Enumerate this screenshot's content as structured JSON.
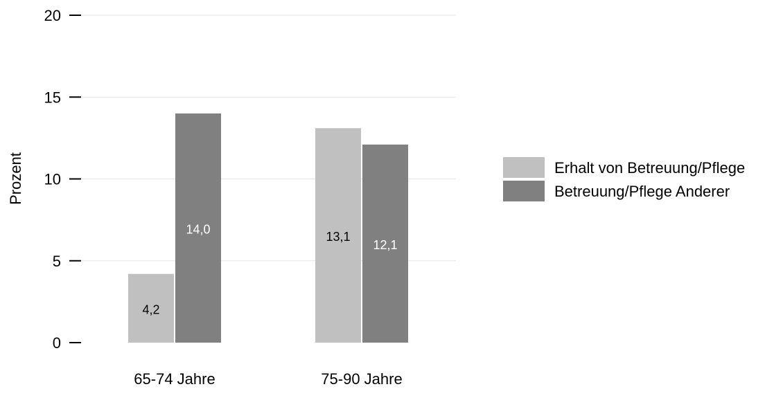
{
  "chart_data": {
    "type": "bar",
    "categories": [
      "65-74 Jahre",
      "75-90 Jahre"
    ],
    "series": [
      {
        "name": "Erhalt von Betreuung/Pflege",
        "values": [
          4.2,
          13.1
        ],
        "labels": [
          "4,2",
          "13,1"
        ],
        "color": "#c0c0c0",
        "label_color": "#000000"
      },
      {
        "name": "Betreuung/Pflege Anderer",
        "values": [
          14.0,
          12.1
        ],
        "labels": [
          "14,0",
          "12,1"
        ],
        "color": "#808080",
        "label_color": "#ffffff"
      }
    ],
    "ylabel": "Prozent",
    "ylim": [
      0,
      20
    ],
    "yticks": [
      {
        "value": 0,
        "label": "0"
      },
      {
        "value": 5,
        "label": "5"
      },
      {
        "value": 10,
        "label": "10"
      },
      {
        "value": 15,
        "label": "15"
      },
      {
        "value": 20,
        "label": "20"
      }
    ],
    "grid": true,
    "legend_position": "right"
  }
}
